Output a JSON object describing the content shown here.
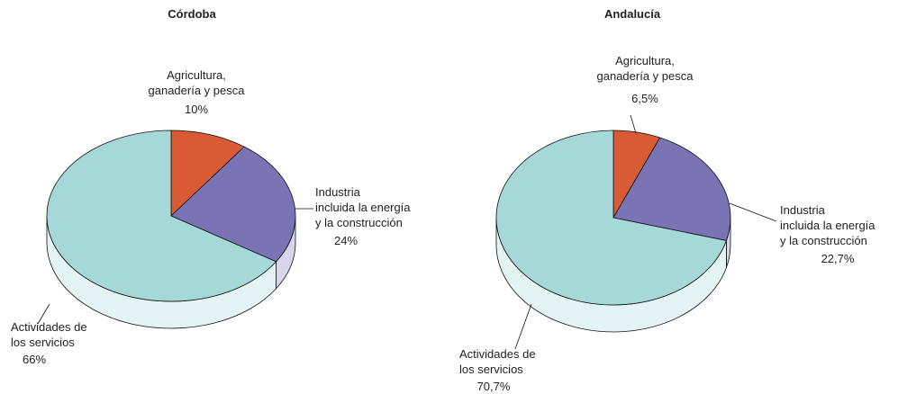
{
  "chart_data": [
    {
      "type": "pie",
      "title": "Córdoba",
      "categories": [
        [
          "Agricultura,",
          "ganadería y pesca"
        ],
        [
          "Industria",
          "incluida la energía",
          "y la construcción"
        ],
        [
          "Actividades de",
          "los servicios"
        ]
      ],
      "values": [
        10,
        24,
        66
      ],
      "value_labels": [
        "10%",
        "24%",
        "66%"
      ],
      "colors": [
        "#d95b35",
        "#7a74b5",
        "#a6d8d8"
      ]
    },
    {
      "type": "pie",
      "title": "Andalucía",
      "categories": [
        [
          "Agricultura,",
          "ganadería y pesca"
        ],
        [
          "Industria",
          "incluida la energía",
          "y la construcción"
        ],
        [
          "Actividades de",
          "los servicios"
        ]
      ],
      "values": [
        6.5,
        22.7,
        70.7
      ],
      "value_labels": [
        "6,5%",
        "22,7%",
        "70,7%"
      ],
      "colors": [
        "#d95b35",
        "#7a74b5",
        "#a6d8d8"
      ]
    }
  ]
}
